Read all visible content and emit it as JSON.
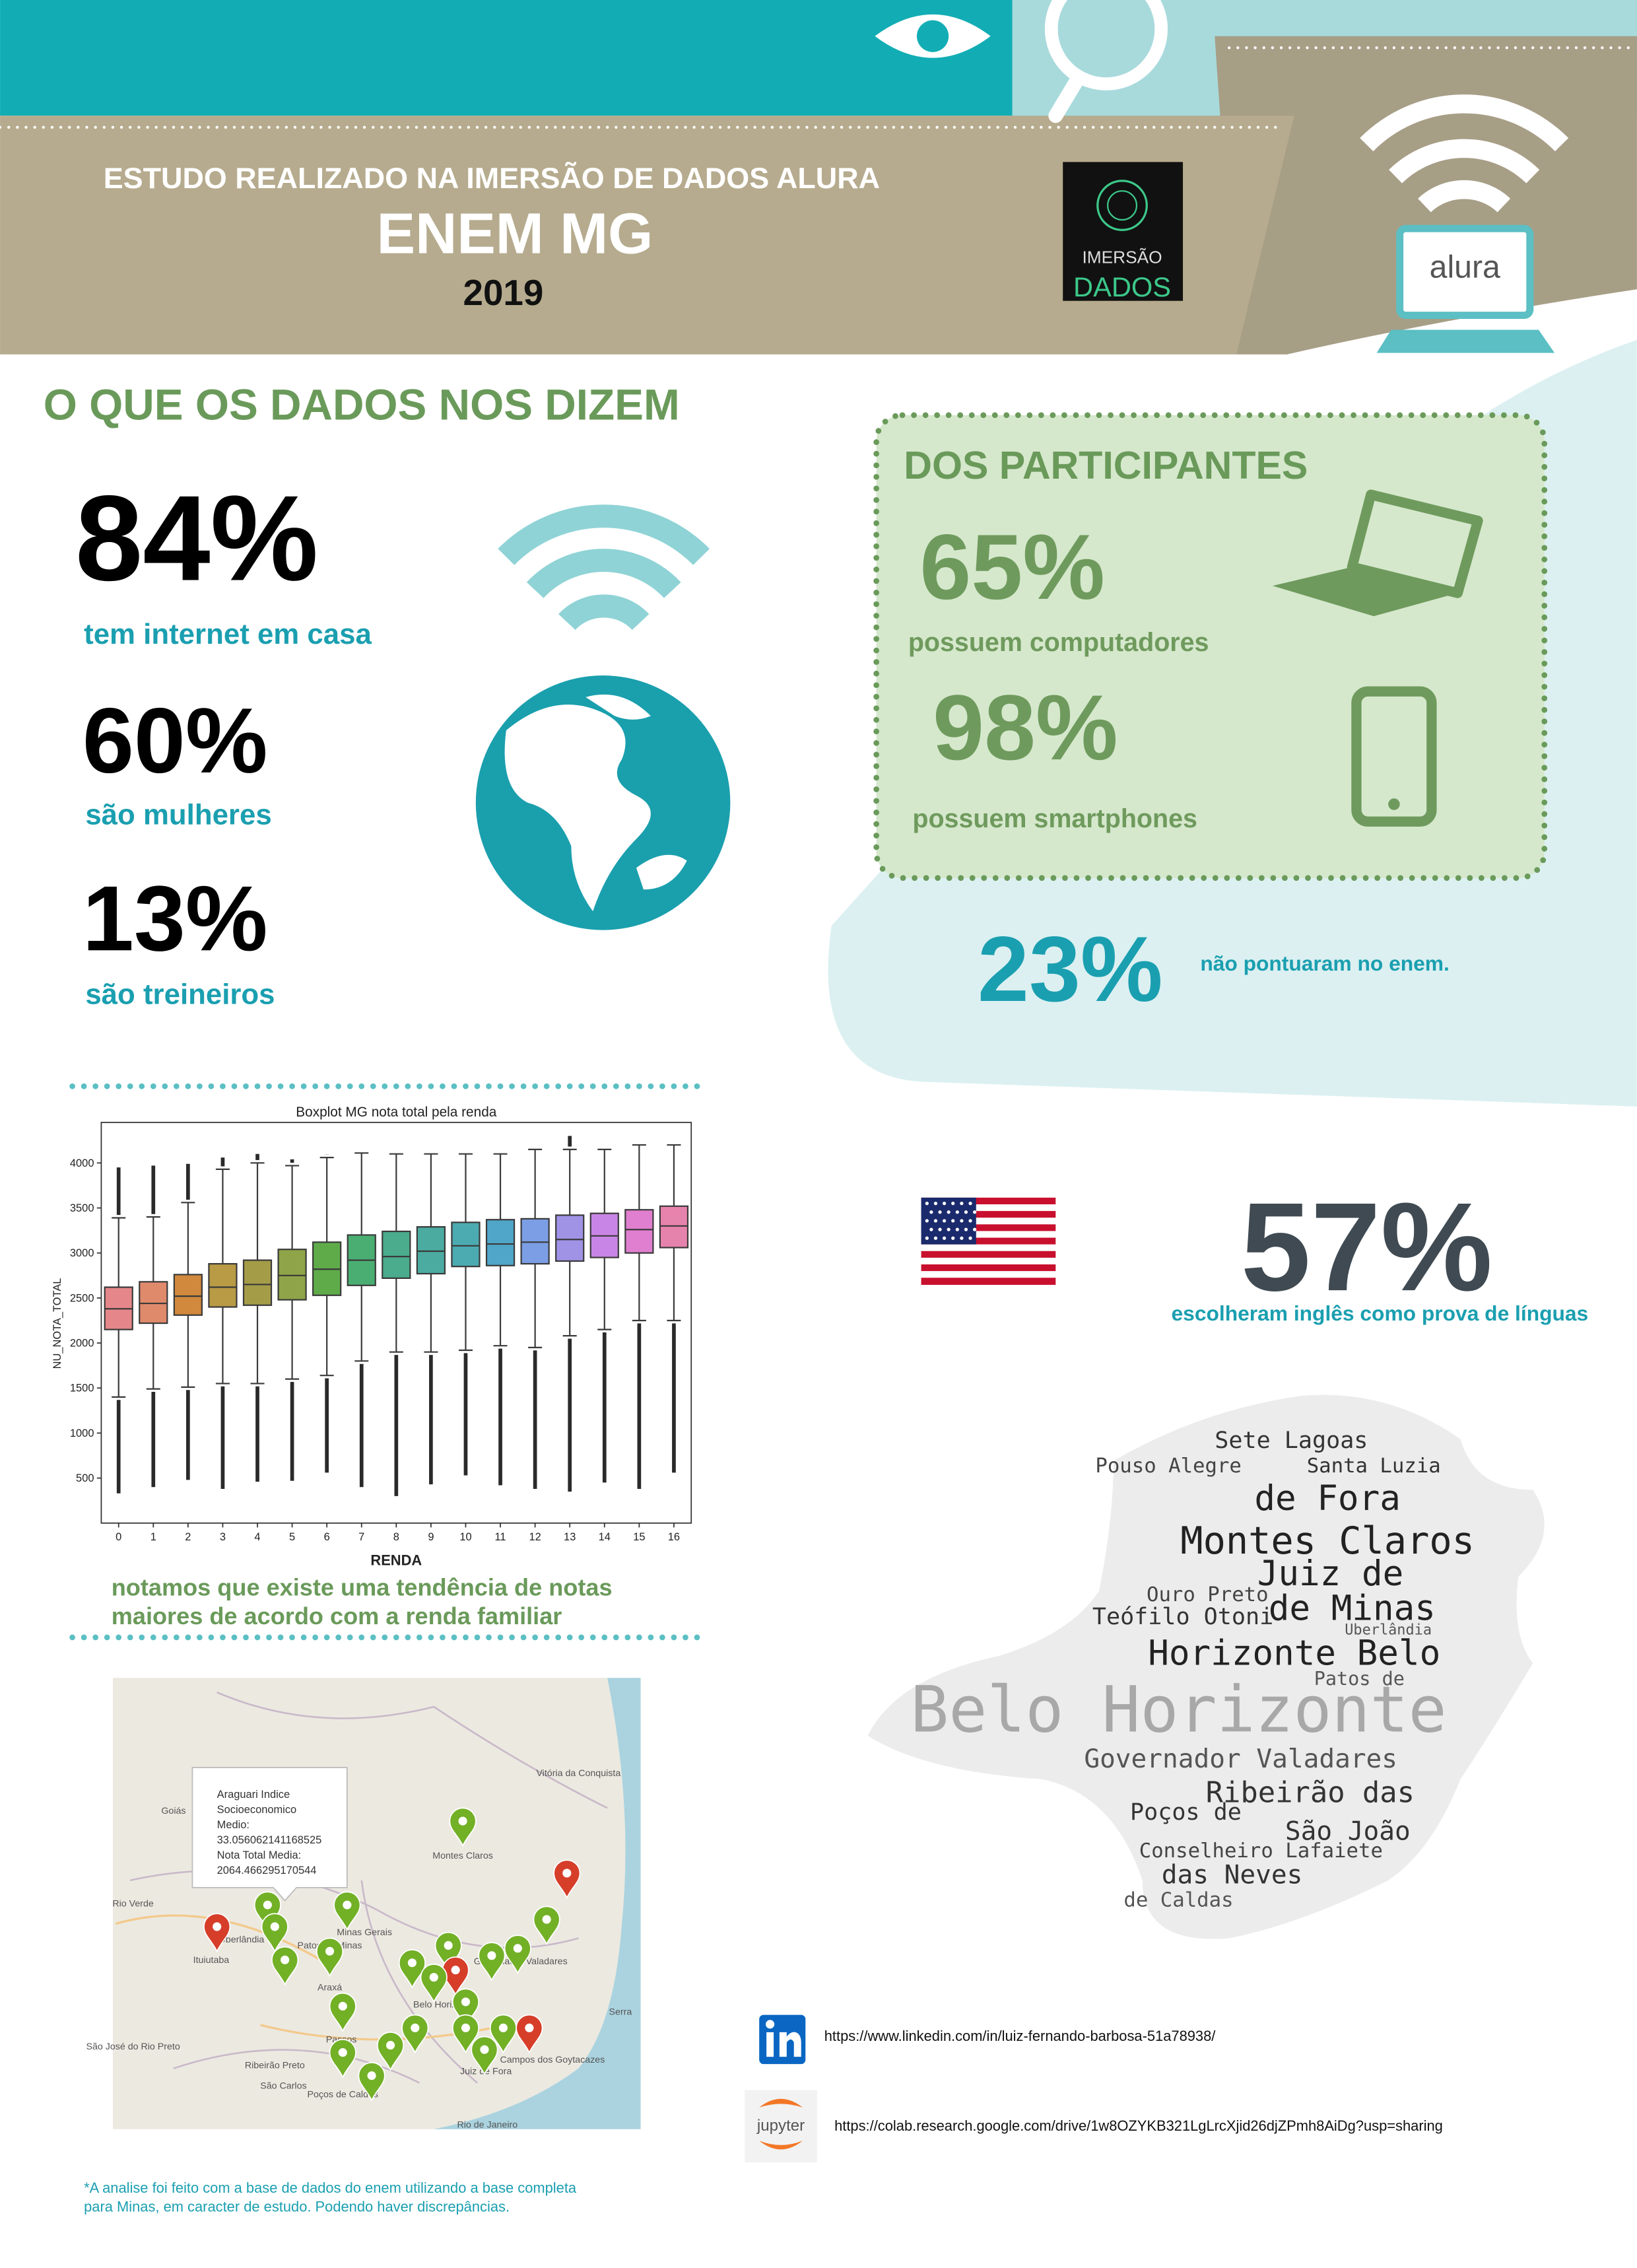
{
  "header": {
    "subtitle": "ESTUDO REALIZADO NA IMERSÃO DE DADOS ALURA",
    "title": "ENEM MG",
    "year": "2019",
    "logo_line1": "IMERSÃO",
    "logo_line2": "DADOS",
    "brand": "alura"
  },
  "section_title": "O QUE OS DADOS NOS DIZEM",
  "stats": [
    {
      "value": "84%",
      "label": "tem internet em casa"
    },
    {
      "value": "60%",
      "label": "são mulheres"
    },
    {
      "value": "13%",
      "label": "são treineiros"
    }
  ],
  "participants": {
    "title": "DOS PARTICIPANTES",
    "stats": [
      {
        "value": "65%",
        "label": "possuem computadores"
      },
      {
        "value": "98%",
        "label": "possuem smartphones"
      }
    ]
  },
  "not_scored": {
    "value": "23%",
    "label": "não pontuaram no enem."
  },
  "english": {
    "value": "57%",
    "label": "escolheram inglês como prova de línguas"
  },
  "chart_data": {
    "type": "box",
    "title": "Boxplot MG nota total pela renda",
    "x_label": "RENDA",
    "y_label": "NU_NOTA_TOTAL",
    "categories": [
      "0",
      "1",
      "2",
      "3",
      "4",
      "5",
      "6",
      "7",
      "8",
      "9",
      "10",
      "11",
      "12",
      "13",
      "14",
      "15",
      "16"
    ],
    "q1": [
      2150,
      2220,
      2310,
      2400,
      2420,
      2480,
      2530,
      2640,
      2720,
      2770,
      2850,
      2860,
      2880,
      2910,
      2950,
      3000,
      3060
    ],
    "median": [
      2380,
      2440,
      2520,
      2620,
      2650,
      2750,
      2820,
      2920,
      2960,
      3020,
      3080,
      3100,
      3120,
      3150,
      3190,
      3260,
      3300
    ],
    "q3": [
      2620,
      2680,
      2760,
      2880,
      2920,
      3040,
      3120,
      3200,
      3240,
      3290,
      3340,
      3370,
      3380,
      3420,
      3440,
      3480,
      3520
    ],
    "whisker_low": [
      1400,
      1490,
      1510,
      1550,
      1550,
      1600,
      1640,
      1800,
      1900,
      1900,
      1920,
      1970,
      1950,
      2080,
      2150,
      2250,
      2250
    ],
    "whisker_high": [
      3390,
      3400,
      3560,
      3930,
      4000,
      3970,
      4060,
      4110,
      4100,
      4100,
      4100,
      4100,
      4150,
      4150,
      4150,
      4200,
      4200
    ],
    "outlier_low": [
      330,
      400,
      480,
      380,
      460,
      470,
      560,
      400,
      300,
      430,
      530,
      420,
      380,
      350,
      450,
      380,
      560
    ],
    "outlier_high": [
      3950,
      3970,
      3990,
      4060,
      4100,
      4040,
      4090,
      null,
      null,
      null,
      null,
      null,
      null,
      4300,
      null,
      null,
      null
    ],
    "colors": [
      "#e5878a",
      "#e08a6c",
      "#d1893d",
      "#b99a45",
      "#a59c48",
      "#8fa448",
      "#5fab4a",
      "#4aae72",
      "#4aac8c",
      "#4baba0",
      "#4cabb1",
      "#4fa6c9",
      "#7b9ee5",
      "#a093e6",
      "#c985e5",
      "#e07fcf",
      "#e683ad"
    ],
    "ylim": [
      0,
      4450
    ],
    "yticks": [
      500,
      1000,
      1500,
      2000,
      2500,
      3000,
      3500,
      4000
    ],
    "grid": false
  },
  "caption": [
    "notamos que existe uma tendência de notas",
    "maiores de acordo com a renda familiar"
  ],
  "map": {
    "popup": [
      "Araguari Indice",
      "Socioeconomico",
      "Medio:",
      "33.056062141168525",
      "Nota Total Media:",
      "2064.466295170544"
    ],
    "places": [
      "Montes Claros",
      "Vitória da Conquista",
      "Rio Verde",
      "Ituiutaba",
      "Uberlândia",
      "Patos de Minas",
      "Araxá",
      "Governador Valadares",
      "Belo Horizonte",
      "Passos",
      "Juiz de Fora",
      "Campos dos Goytacazes",
      "Ribeirão Preto",
      "São José do Rio Preto",
      "São Carlos",
      "Poços de Caldas",
      "Rio de Janeiro",
      "Serra",
      "Goiás",
      "Minas Gerais"
    ]
  },
  "wordcloud": [
    "Sete Lagoas",
    "Pouso Alegre",
    "Santa Luzia",
    "de Fora",
    "Montes Claros",
    "Juiz de",
    "Ouro Preto",
    "de Minas",
    "Teófilo Otoni",
    "Horizonte Belo",
    "Uberlândia",
    "Patos de",
    "Belo Horizonte",
    "Governador Valadares",
    "Ribeirão das",
    "Poços de",
    "São João",
    "Conselheiro Lafaiete",
    "das Neves",
    "de Caldas"
  ],
  "links": {
    "linkedin": "https://www.linkedin.com/in/luiz-fernando-barbosa-51a78938/",
    "jupyter_label": "jupyter",
    "colab": "https://colab.research.google.com/drive/1w8OZYKB321LgLrcXjid26djZPmh8AiDg?usp=sharing"
  },
  "footnote": [
    "*A analise foi feito com a base de dados do enem utilizando a base completa",
    "para Minas, em caracter de estudo. Podendo haver discrepâncias."
  ]
}
